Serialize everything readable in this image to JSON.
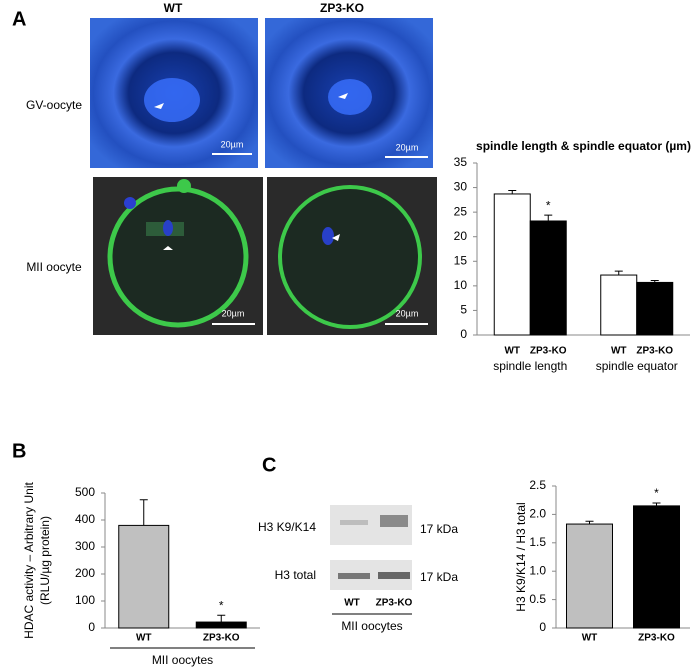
{
  "panels": {
    "a": "A",
    "b": "B",
    "c": "C"
  },
  "images": {
    "col_labels": [
      "WT",
      "ZP3-KO"
    ],
    "row_labels": [
      "GV-oocyte",
      "MII oocyte"
    ],
    "scale_bar": "20µm"
  },
  "blot": {
    "row_labels": [
      "H3 K9/K14",
      "H3 total"
    ],
    "kda": "17 kDa",
    "lanes": [
      "WT",
      "ZP3-KO"
    ],
    "caption": "MII oocytes"
  },
  "chart_data": [
    {
      "type": "bar",
      "title": "spindle length & spindle equator (µm)",
      "categories": [
        "spindle length",
        "spindle equator"
      ],
      "series": [
        {
          "name": "WT",
          "color": "#ffffff",
          "values": [
            28.7,
            12.2
          ],
          "errors": [
            0.7,
            0.8
          ]
        },
        {
          "name": "ZP3-KO",
          "color": "#000000",
          "values": [
            23.2,
            10.7
          ],
          "errors": [
            1.2,
            0.4
          ]
        }
      ],
      "annotations": [
        {
          "text": "*",
          "series": 1,
          "category": 0
        }
      ],
      "ylim": [
        0,
        35
      ],
      "yticks": [
        0,
        5,
        10,
        15,
        20,
        25,
        30,
        35
      ]
    },
    {
      "type": "bar",
      "ylabel": [
        "HDAC activity – Arbitrary Unit",
        "(RLU/µg protein)"
      ],
      "xlabel": "MII oocytes",
      "categories": [
        "WT",
        "ZP3-KO"
      ],
      "values": [
        380,
        22
      ],
      "errors": [
        95,
        25
      ],
      "colors": [
        "#c0c0c0",
        "#000000"
      ],
      "annotations": [
        {
          "text": "*",
          "category": 1
        }
      ],
      "ylim": [
        0,
        500
      ],
      "yticks": [
        0,
        100,
        200,
        300,
        400,
        500
      ]
    },
    {
      "type": "bar",
      "ylabel": [
        "H3 K9/K14 / H3 total"
      ],
      "categories": [
        "WT",
        "ZP3-KO"
      ],
      "values": [
        1.83,
        2.15
      ],
      "errors": [
        0.05,
        0.05
      ],
      "colors": [
        "#bfbfbf",
        "#000000"
      ],
      "annotations": [
        {
          "text": "*",
          "category": 1
        }
      ],
      "ylim": [
        0,
        2.5
      ],
      "yticks": [
        0,
        0.5,
        {
          "value": 1,
          "label": "1.0"
        },
        1.5,
        {
          "value": 2,
          "label": "2.0"
        },
        2.5
      ]
    }
  ]
}
